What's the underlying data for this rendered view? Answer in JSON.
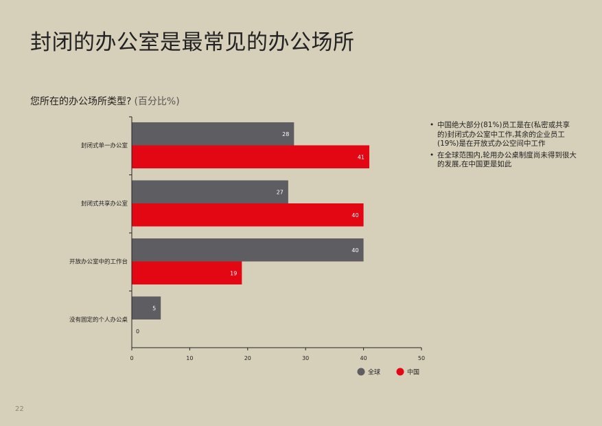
{
  "page": {
    "title": "封闭的办公室是最常见的办公场所",
    "question": "您所在的办公场所类型?",
    "question_unit": "(百分比%)",
    "page_number": "22"
  },
  "bullets": [
    "中国绝大部分(81%)员工是在(私密或共享的)封闭式办公室中工作,其余的企业员工(19%)是在开放式办公空间中工作",
    "在全球范围内,轮用办公桌制度尚未得到很大的发展,在中国更是如此"
  ],
  "chart_data": {
    "type": "bar",
    "orientation": "horizontal",
    "categories": [
      "封闭式单一办公室",
      "封闭式共享办公室",
      "开放办公室中的工作台",
      "没有固定的个人办公桌"
    ],
    "series": [
      {
        "name": "全球",
        "color": "#5e5e62",
        "values": [
          28,
          27,
          40,
          5
        ]
      },
      {
        "name": "中国",
        "color": "#e30613",
        "values": [
          41,
          40,
          19,
          0
        ]
      }
    ],
    "xlim": [
      0,
      50
    ],
    "xticks": [
      0,
      10,
      20,
      30,
      40,
      50
    ],
    "legend_position": "bottom-right",
    "grid": false
  }
}
